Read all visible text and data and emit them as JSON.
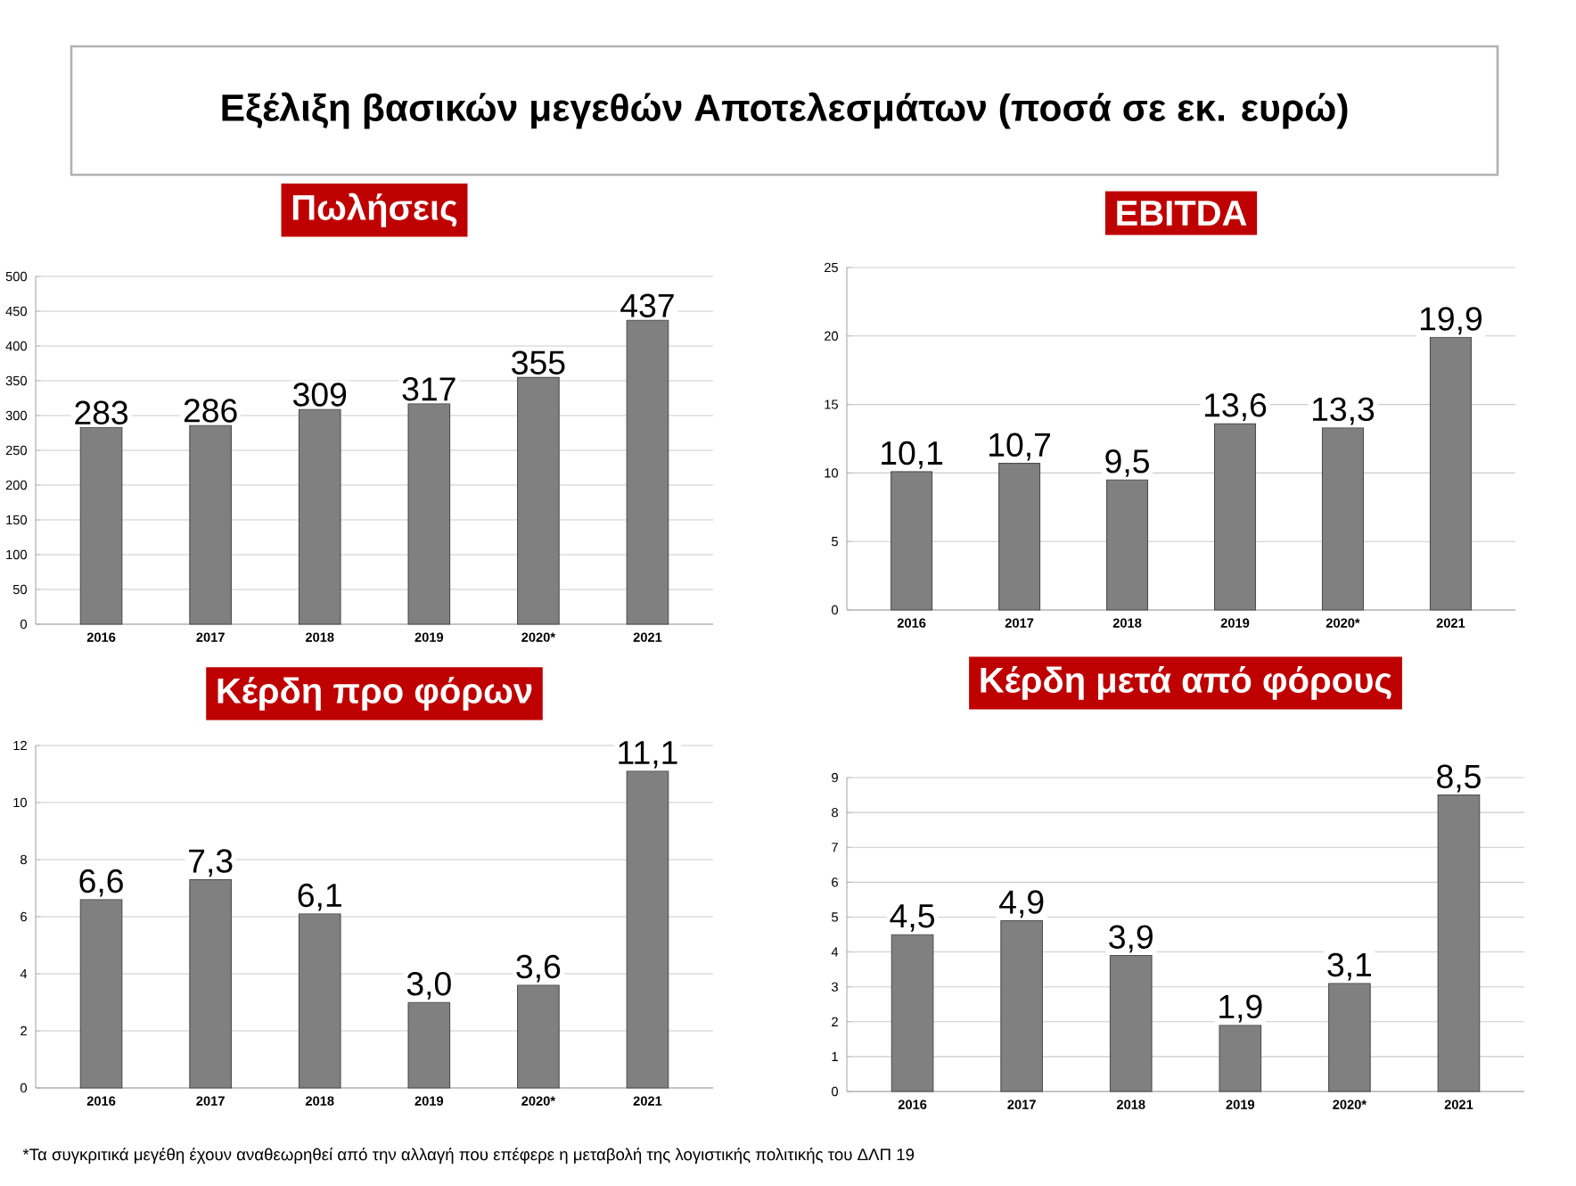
{
  "chart_data": [
    {
      "type": "other",
      "title": "Εξέλιξη βασικών μεγεθών Αποτελεσμάτων (ποσά σε εκ. ευρώ)",
      "annotations": [
        "*Τα συγκριτικά μεγέθη έχουν αναθεωρηθεί από την αλλαγή που επέφερε η μεταβολή της λογιστικής πολιτικής του ΔΛΠ 19"
      ]
    },
    {
      "type": "bar",
      "title": "Πωλήσεις",
      "categories": [
        "2016",
        "2017",
        "2018",
        "2019",
        "2020*",
        "2021"
      ],
      "values": [
        283,
        286,
        309,
        317,
        355,
        437
      ],
      "value_labels": [
        "283",
        "286",
        "309",
        "317",
        "355",
        "437"
      ],
      "color": "#808080",
      "ylim": [
        0,
        500
      ],
      "yticks": [
        0,
        50,
        100,
        150,
        200,
        250,
        300,
        350,
        400,
        450,
        500
      ],
      "grid": "y"
    },
    {
      "type": "bar",
      "title": "EBITDA",
      "categories": [
        "2016",
        "2017",
        "2018",
        "2019",
        "2020*",
        "2021"
      ],
      "values": [
        10.1,
        10.7,
        9.5,
        13.6,
        13.3,
        19.9
      ],
      "value_labels": [
        "10,1",
        "10,7",
        "9,5",
        "13,6",
        "13,3",
        "19,9"
      ],
      "color": "#808080",
      "ylim": [
        0,
        25
      ],
      "yticks": [
        0,
        5,
        10,
        15,
        20,
        25
      ],
      "grid": "y"
    },
    {
      "type": "bar",
      "title": "Κέρδη προ φόρων",
      "categories": [
        "2016",
        "2017",
        "2018",
        "2019",
        "2020*",
        "2021"
      ],
      "values": [
        6.6,
        7.3,
        6.1,
        3.0,
        3.6,
        11.1
      ],
      "value_labels": [
        "6,6",
        "7,3",
        "6,1",
        "3,0",
        "3,6",
        "11,1"
      ],
      "color": "#808080",
      "ylim": [
        0,
        12
      ],
      "yticks": [
        0,
        2,
        4,
        6,
        8,
        10,
        12
      ],
      "grid": "y"
    },
    {
      "type": "bar",
      "title": "Κέρδη μετά από φόρους",
      "categories": [
        "2016",
        "2017",
        "2018",
        "2019",
        "2020*",
        "2021"
      ],
      "values": [
        4.5,
        4.9,
        3.9,
        1.9,
        3.1,
        8.5
      ],
      "value_labels": [
        "4,5",
        "4,9",
        "3,9",
        "1,9",
        "3,1",
        "8,5"
      ],
      "color": "#808080",
      "ylim": [
        0,
        9
      ],
      "yticks": [
        0,
        1,
        2,
        3,
        4,
        5,
        6,
        7,
        8,
        9
      ],
      "grid": "y"
    }
  ]
}
